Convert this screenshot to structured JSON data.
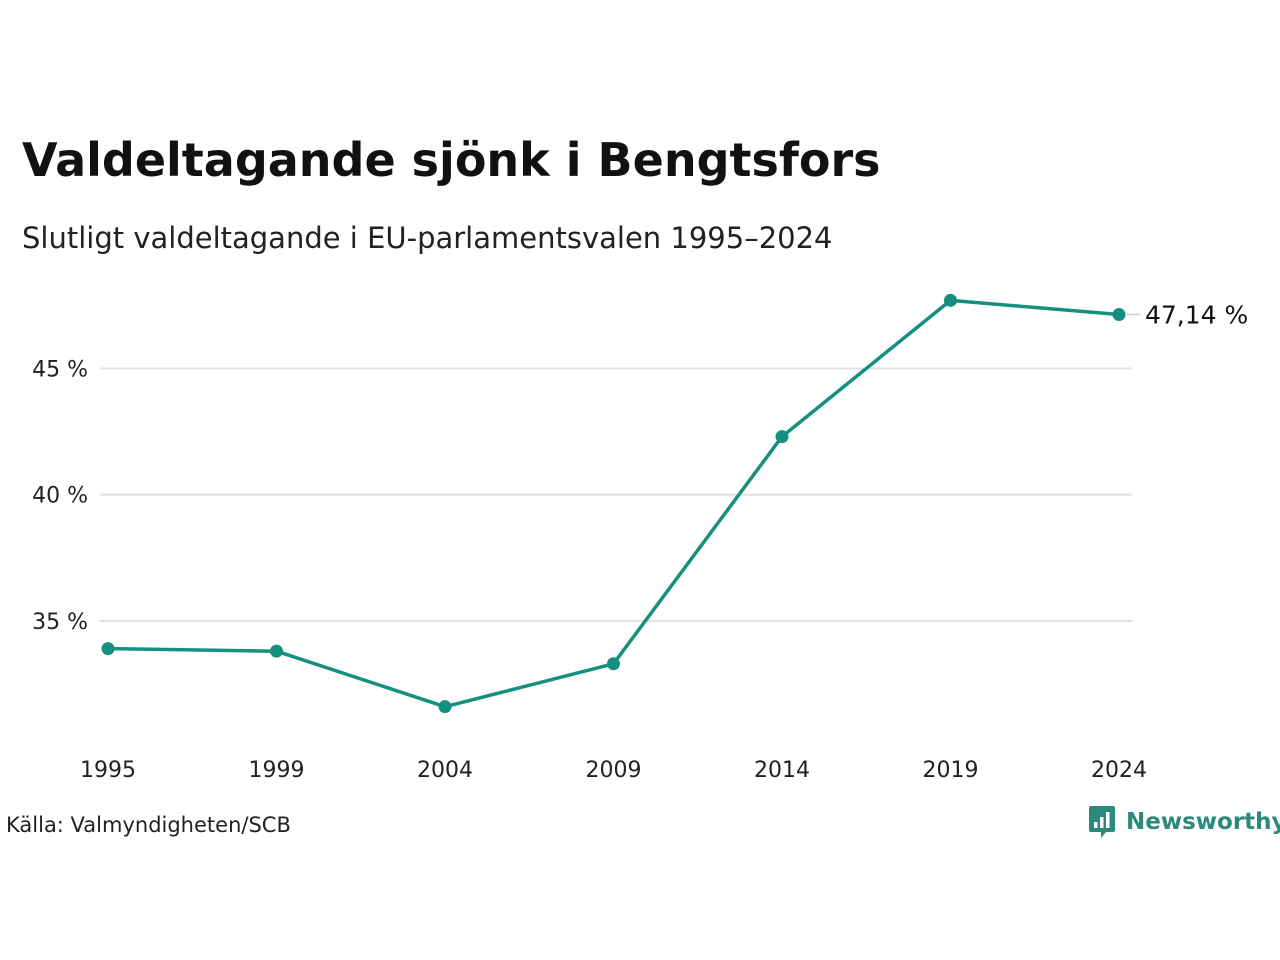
{
  "header": {
    "title": "Valdeltagande sjönk i Bengtsfors",
    "subtitle": "Slutligt valdeltagande i EU-parlamentsvalen 1995–2024"
  },
  "footer": {
    "source": "Källa: Valmyndigheten/SCB",
    "brand": "Newsworthy",
    "brand_icon": "newsworthy-logo-icon"
  },
  "colors": {
    "line": "#15907f",
    "grid": "#e3e3e3",
    "brand": "#2b8a7c"
  },
  "chart_data": {
    "type": "line",
    "title": "Valdeltagande sjönk i Bengtsfors",
    "subtitle": "Slutligt valdeltagande i EU-parlamentsvalen 1995–2024",
    "xlabel": "",
    "ylabel": "",
    "x": [
      "1995",
      "1999",
      "2004",
      "2009",
      "2014",
      "2019",
      "2024"
    ],
    "series": [
      {
        "values": [
          33.9,
          33.8,
          31.6,
          33.3,
          42.3,
          47.7,
          47.14
        ]
      }
    ],
    "y_ticks": [
      35,
      40,
      45
    ],
    "y_tick_labels": [
      "35 %",
      "40 %",
      "45 %"
    ],
    "ylim": [
      30.2,
      49.3
    ],
    "end_label": "47,14 %",
    "grid": true,
    "legend": "none"
  }
}
